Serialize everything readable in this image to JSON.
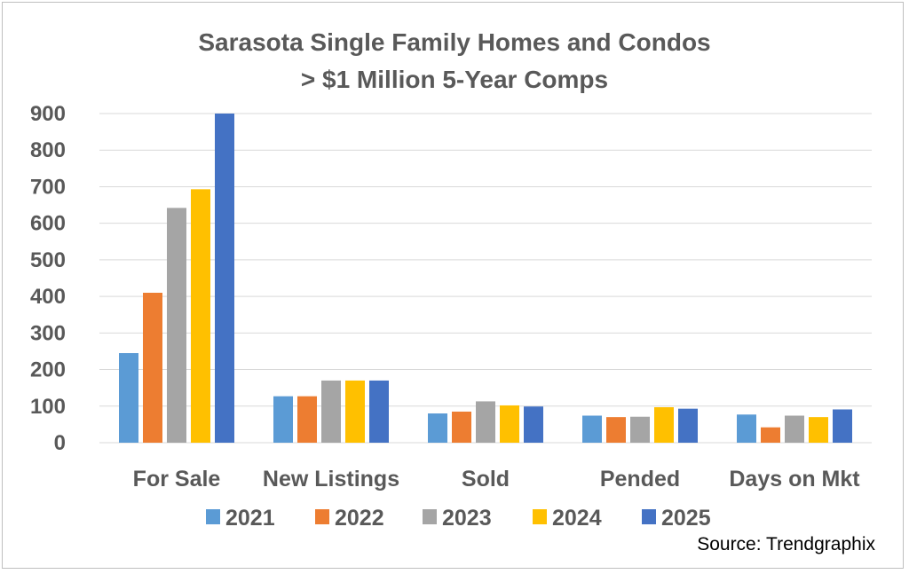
{
  "chart_data": {
    "type": "bar",
    "title_line1": "Sarasota Single Family Homes and Condos",
    "title_line2": "> $1 Million 5-Year Comps",
    "categories": [
      "For Sale",
      "New Listings",
      "Sold",
      "Pended",
      "Days on Mkt"
    ],
    "series": [
      {
        "name": "2021",
        "color": "#5B9BD5",
        "values": [
          245,
          127,
          80,
          74,
          77
        ]
      },
      {
        "name": "2022",
        "color": "#ED7D31",
        "values": [
          410,
          127,
          85,
          70,
          42
        ]
      },
      {
        "name": "2023",
        "color": "#A5A5A5",
        "values": [
          642,
          170,
          113,
          71,
          74
        ]
      },
      {
        "name": "2024",
        "color": "#FFC000",
        "values": [
          693,
          170,
          102,
          97,
          70
        ]
      },
      {
        "name": "2025",
        "color": "#4472C4",
        "values": [
          900,
          170,
          99,
          93,
          91
        ]
      }
    ],
    "ylim": [
      0,
      900
    ],
    "yticks": [
      "0",
      "100",
      "200",
      "300",
      "400",
      "500",
      "600",
      "700",
      "800",
      "900"
    ],
    "grid": true,
    "legend": "bottom",
    "source": "Source: Trendgraphix"
  }
}
